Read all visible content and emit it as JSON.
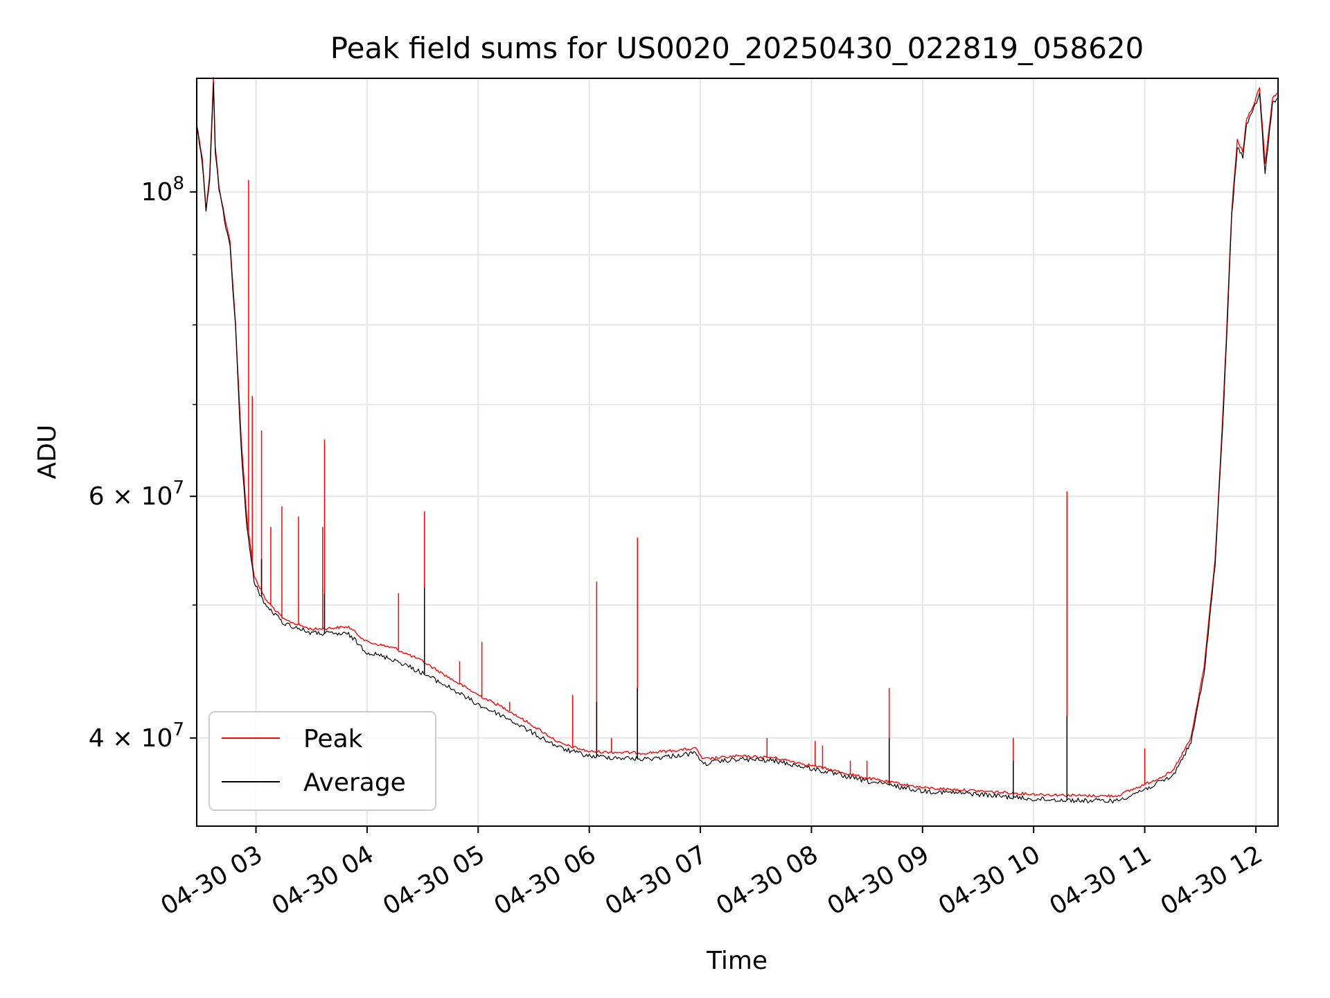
{
  "chart_data": {
    "type": "line",
    "title": "Peak field sums for US0020_20250430_022819_058620",
    "xlabel": "Time",
    "ylabel": "ADU",
    "y_scale": "log",
    "grid": true,
    "legend_placement": "lower-left",
    "xlim": [
      "2025-04-30 02:28",
      "2025-04-30 12:12"
    ],
    "ylim": [
      34500000,
      121000000
    ],
    "x_ticks": [
      "04-30 03",
      "04-30 04",
      "04-30 05",
      "04-30 06",
      "04-30 07",
      "04-30 08",
      "04-30 09",
      "04-30 10",
      "04-30 11",
      "04-30 12"
    ],
    "y_ticks": [
      {
        "value": 100000000,
        "base": "10",
        "exp": "8"
      },
      {
        "value": 60000000,
        "base": "6 × 10",
        "exp": "7"
      },
      {
        "value": 40000000,
        "base": "4 × 10",
        "exp": "7"
      }
    ],
    "series": [
      {
        "name": "Peak",
        "color": "#ff0000",
        "points": [
          [
            "2025-04-30 02:28",
            112000000
          ],
          [
            "2025-04-30 02:31",
            106000000
          ],
          [
            "2025-04-30 02:33",
            97000000
          ],
          [
            "2025-04-30 02:35",
            103000000
          ],
          [
            "2025-04-30 02:37",
            121000000
          ],
          [
            "2025-04-30 02:38",
            108000000
          ],
          [
            "2025-04-30 02:40",
            101000000
          ],
          [
            "2025-04-30 02:43",
            96000000
          ],
          [
            "2025-04-30 02:46",
            92000000
          ],
          [
            "2025-04-30 02:49",
            80000000
          ],
          [
            "2025-04-30 02:52",
            66000000
          ],
          [
            "2025-04-30 02:55",
            58000000
          ],
          [
            "2025-04-30 02:59",
            52500000
          ],
          [
            "2025-04-30 03:05",
            50500000
          ],
          [
            "2025-04-30 03:15",
            48800000
          ],
          [
            "2025-04-30 03:30",
            48000000
          ],
          [
            "2025-04-30 03:50",
            48200000
          ],
          [
            "2025-04-30 04:00",
            47000000
          ],
          [
            "2025-04-30 04:15",
            46500000
          ],
          [
            "2025-04-30 04:30",
            45500000
          ],
          [
            "2025-04-30 04:45",
            44200000
          ],
          [
            "2025-04-30 05:00",
            43000000
          ],
          [
            "2025-04-30 05:15",
            42000000
          ],
          [
            "2025-04-30 05:30",
            40800000
          ],
          [
            "2025-04-30 05:45",
            39600000
          ],
          [
            "2025-04-30 06:00",
            39100000
          ],
          [
            "2025-04-30 06:30",
            39000000
          ],
          [
            "2025-04-30 06:58",
            39300000
          ],
          [
            "2025-04-30 07:01",
            38600000
          ],
          [
            "2025-04-30 07:20",
            38800000
          ],
          [
            "2025-04-30 07:40",
            38700000
          ],
          [
            "2025-04-30 08:00",
            38200000
          ],
          [
            "2025-04-30 08:30",
            37400000
          ],
          [
            "2025-04-30 09:00",
            36800000
          ],
          [
            "2025-04-30 09:30",
            36600000
          ],
          [
            "2025-04-30 10:00",
            36400000
          ],
          [
            "2025-04-30 10:30",
            36300000
          ],
          [
            "2025-04-30 10:45",
            36300000
          ],
          [
            "2025-04-30 11:00",
            37000000
          ],
          [
            "2025-04-30 11:15",
            37800000
          ],
          [
            "2025-04-30 11:25",
            40000000
          ],
          [
            "2025-04-30 11:32",
            45000000
          ],
          [
            "2025-04-30 11:38",
            54000000
          ],
          [
            "2025-04-30 11:42",
            68000000
          ],
          [
            "2025-04-30 11:44",
            78000000
          ],
          [
            "2025-04-30 11:47",
            97000000
          ],
          [
            "2025-04-30 11:50",
            109000000
          ],
          [
            "2025-04-30 11:53",
            107000000
          ],
          [
            "2025-04-30 11:55",
            113000000
          ],
          [
            "2025-04-30 11:58",
            115000000
          ],
          [
            "2025-04-30 12:02",
            119000000
          ],
          [
            "2025-04-30 12:05",
            105000000
          ],
          [
            "2025-04-30 12:09",
            117000000
          ],
          [
            "2025-04-30 12:12",
            118000000
          ]
        ],
        "spikes": [
          [
            "2025-04-30 02:56",
            102000000
          ],
          [
            "2025-04-30 02:58",
            71000000
          ],
          [
            "2025-04-30 03:03",
            67000000
          ],
          [
            "2025-04-30 03:08",
            57000000
          ],
          [
            "2025-04-30 03:14",
            59000000
          ],
          [
            "2025-04-30 03:23",
            58000000
          ],
          [
            "2025-04-30 03:36",
            57000000
          ],
          [
            "2025-04-30 03:37",
            66000000
          ],
          [
            "2025-04-30 04:17",
            51000000
          ],
          [
            "2025-04-30 04:31",
            58500000
          ],
          [
            "2025-04-30 04:50",
            45500000
          ],
          [
            "2025-04-30 05:02",
            47000000
          ],
          [
            "2025-04-30 05:17",
            42500000
          ],
          [
            "2025-04-30 05:51",
            43000000
          ],
          [
            "2025-04-30 06:04",
            52000000
          ],
          [
            "2025-04-30 06:12",
            40000000
          ],
          [
            "2025-04-30 06:26",
            56000000
          ],
          [
            "2025-04-30 07:36",
            40000000
          ],
          [
            "2025-04-30 08:02",
            39800000
          ],
          [
            "2025-04-30 08:06",
            39500000
          ],
          [
            "2025-04-30 08:21",
            38500000
          ],
          [
            "2025-04-30 08:30",
            38500000
          ],
          [
            "2025-04-30 08:42",
            43500000
          ],
          [
            "2025-04-30 09:49",
            40000000
          ],
          [
            "2025-04-30 10:18",
            60500000
          ],
          [
            "2025-04-30 11:00",
            39300000
          ]
        ]
      },
      {
        "name": "Average",
        "color": "#000000",
        "points": [
          [
            "2025-04-30 02:28",
            111500000
          ],
          [
            "2025-04-30 02:31",
            105000000
          ],
          [
            "2025-04-30 02:33",
            96500000
          ],
          [
            "2025-04-30 02:35",
            102000000
          ],
          [
            "2025-04-30 02:37",
            120000000
          ],
          [
            "2025-04-30 02:38",
            107000000
          ],
          [
            "2025-04-30 02:40",
            100500000
          ],
          [
            "2025-04-30 02:43",
            95500000
          ],
          [
            "2025-04-30 02:46",
            91000000
          ],
          [
            "2025-04-30 02:49",
            79500000
          ],
          [
            "2025-04-30 02:52",
            65000000
          ],
          [
            "2025-04-30 02:55",
            57000000
          ],
          [
            "2025-04-30 02:59",
            52000000
          ],
          [
            "2025-04-30 03:05",
            50000000
          ],
          [
            "2025-04-30 03:15",
            48500000
          ],
          [
            "2025-04-30 03:30",
            47700000
          ],
          [
            "2025-04-30 03:50",
            47600000
          ],
          [
            "2025-04-30 04:00",
            46200000
          ],
          [
            "2025-04-30 04:15",
            45600000
          ],
          [
            "2025-04-30 04:30",
            44600000
          ],
          [
            "2025-04-30 04:45",
            43500000
          ],
          [
            "2025-04-30 05:00",
            42300000
          ],
          [
            "2025-04-30 05:15",
            41400000
          ],
          [
            "2025-04-30 05:30",
            40300000
          ],
          [
            "2025-04-30 05:45",
            39300000
          ],
          [
            "2025-04-30 06:00",
            38800000
          ],
          [
            "2025-04-30 06:30",
            38600000
          ],
          [
            "2025-04-30 06:58",
            39000000
          ],
          [
            "2025-04-30 07:01",
            38300000
          ],
          [
            "2025-04-30 07:20",
            38600000
          ],
          [
            "2025-04-30 07:40",
            38500000
          ],
          [
            "2025-04-30 08:00",
            38000000
          ],
          [
            "2025-04-30 08:30",
            37200000
          ],
          [
            "2025-04-30 09:00",
            36600000
          ],
          [
            "2025-04-30 09:30",
            36400000
          ],
          [
            "2025-04-30 10:00",
            36100000
          ],
          [
            "2025-04-30 10:30",
            36000000
          ],
          [
            "2025-04-30 10:45",
            36000000
          ],
          [
            "2025-04-30 11:00",
            36700000
          ],
          [
            "2025-04-30 11:15",
            37500000
          ],
          [
            "2025-04-30 11:25",
            39700000
          ],
          [
            "2025-04-30 11:32",
            44500000
          ],
          [
            "2025-04-30 11:38",
            53500000
          ],
          [
            "2025-04-30 11:42",
            67000000
          ],
          [
            "2025-04-30 11:44",
            77000000
          ],
          [
            "2025-04-30 11:47",
            96000000
          ],
          [
            "2025-04-30 11:50",
            108000000
          ],
          [
            "2025-04-30 11:53",
            106000000
          ],
          [
            "2025-04-30 11:55",
            112000000
          ],
          [
            "2025-04-30 11:58",
            114000000
          ],
          [
            "2025-04-30 12:02",
            118000000
          ],
          [
            "2025-04-30 12:05",
            103000000
          ],
          [
            "2025-04-30 12:09",
            116000000
          ],
          [
            "2025-04-30 12:12",
            117000000
          ]
        ],
        "spikes": [
          [
            "2025-04-30 03:03",
            54000000
          ],
          [
            "2025-04-30 03:37",
            51000000
          ],
          [
            "2025-04-30 04:31",
            51500000
          ],
          [
            "2025-04-30 06:04",
            42500000
          ],
          [
            "2025-04-30 06:26",
            43500000
          ],
          [
            "2025-04-30 08:42",
            40000000
          ],
          [
            "2025-04-30 09:49",
            38500000
          ],
          [
            "2025-04-30 10:18",
            41500000
          ]
        ]
      }
    ]
  }
}
